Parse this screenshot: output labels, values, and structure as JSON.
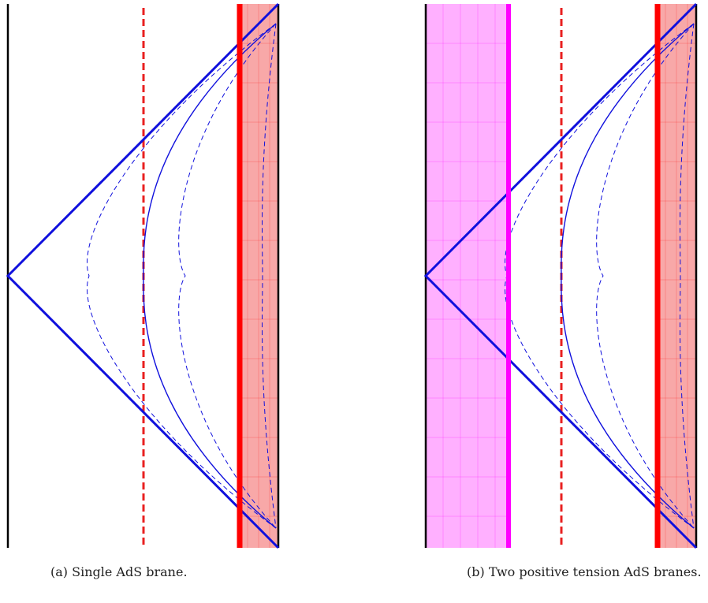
{
  "panels": [
    {
      "caption": "(a) Single AdS brane.",
      "left_brane": false,
      "colors": {
        "boundary": "#000000",
        "light_rays": "#1010dd",
        "brane": "#ff0000",
        "brane_region": "#f8a8a8",
        "dashed_line": "#e82020"
      }
    },
    {
      "caption": "(b) Two positive tension AdS branes.",
      "left_brane": true,
      "colors": {
        "boundary": "#000000",
        "light_rays": "#1010dd",
        "brane": "#ff0000",
        "brane_region": "#f8a8a8",
        "dashed_line": "#e82020",
        "left_brane": "#ff00ff",
        "left_brane_region": "#ffb0ff"
      }
    }
  ]
}
